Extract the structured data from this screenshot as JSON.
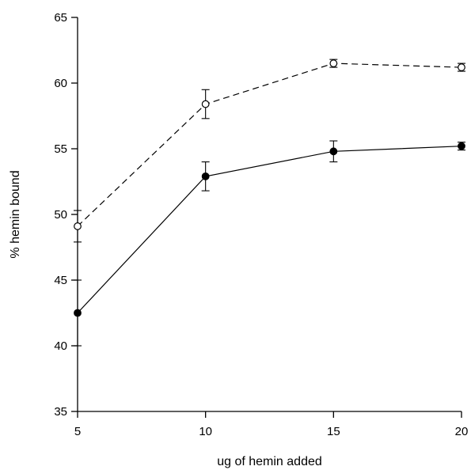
{
  "chart_data": {
    "type": "line",
    "xlabel": "ug of hemin added",
    "ylabel": "% hemin bound",
    "x": [
      5,
      10,
      15,
      20
    ],
    "xlim": [
      5,
      20
    ],
    "ylim": [
      35,
      65
    ],
    "xticks": [
      5,
      10,
      15,
      20
    ],
    "yticks": [
      35,
      40,
      45,
      50,
      55,
      60,
      65
    ],
    "grid": false,
    "series": [
      {
        "line_style": "dashed",
        "marker": "open-circle",
        "values": [
          49.1,
          58.4,
          61.5,
          61.2
        ],
        "err_low": [
          47.9,
          57.3,
          61.2,
          60.9
        ],
        "err_high": [
          50.3,
          59.5,
          61.8,
          61.5
        ]
      },
      {
        "line_style": "solid",
        "marker": "filled-circle",
        "values": [
          42.5,
          52.9,
          54.8,
          55.2
        ],
        "err_low": [
          40.0,
          51.8,
          54.0,
          54.9
        ],
        "err_high": [
          45.0,
          54.0,
          55.6,
          55.5
        ]
      }
    ]
  }
}
